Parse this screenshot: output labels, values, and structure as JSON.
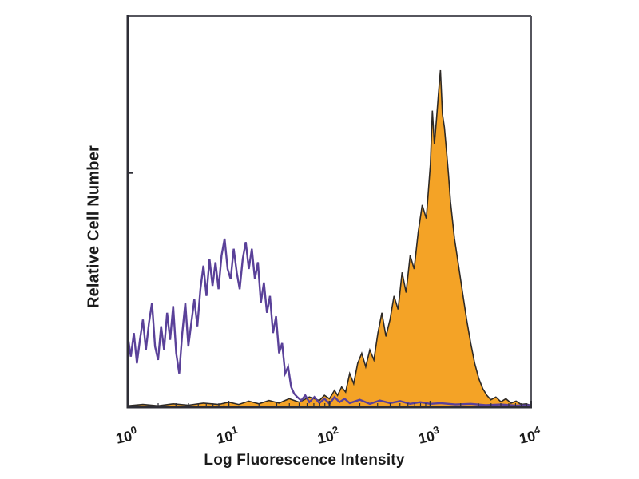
{
  "chart_data": {
    "type": "area",
    "subtype": "flow-cytometry-overlay-histogram",
    "title": "",
    "xlabel": "Log Fluorescence Intensity",
    "ylabel": "Relative Cell Number",
    "x_scale": "log10",
    "x_tick_base": "10",
    "x_tick_exponents": [
      "0",
      "1",
      "2",
      "3",
      "4"
    ],
    "xlim_exponents": [
      0,
      4
    ],
    "y_ticks": [],
    "ylim": [
      0,
      1
    ],
    "grid": false,
    "legend": "none",
    "colors": {
      "open_histogram_stroke": "#5a4199",
      "filled_histogram_fill": "#f4a326",
      "filled_histogram_outline": "#2e2a26",
      "axis_main": "#2e2e36",
      "frame_light": "#56565e",
      "text": "#1b1b1b",
      "background": "#ffffff"
    },
    "series": [
      {
        "name": "filled-histogram-orange",
        "style": "filled",
        "peak_at_log10": 3.1,
        "points": [
          [
            0.0,
            0.004
          ],
          [
            0.15,
            0.008
          ],
          [
            0.3,
            0.004
          ],
          [
            0.45,
            0.01
          ],
          [
            0.6,
            0.006
          ],
          [
            0.75,
            0.012
          ],
          [
            0.9,
            0.008
          ],
          [
            1.0,
            0.015
          ],
          [
            1.1,
            0.008
          ],
          [
            1.2,
            0.018
          ],
          [
            1.3,
            0.01
          ],
          [
            1.4,
            0.02
          ],
          [
            1.5,
            0.012
          ],
          [
            1.6,
            0.025
          ],
          [
            1.7,
            0.015
          ],
          [
            1.8,
            0.03
          ],
          [
            1.9,
            0.02
          ],
          [
            1.95,
            0.035
          ],
          [
            2.0,
            0.025
          ],
          [
            2.05,
            0.05
          ],
          [
            2.08,
            0.035
          ],
          [
            2.12,
            0.06
          ],
          [
            2.16,
            0.045
          ],
          [
            2.2,
            0.1
          ],
          [
            2.24,
            0.07
          ],
          [
            2.28,
            0.13
          ],
          [
            2.32,
            0.16
          ],
          [
            2.36,
            0.12
          ],
          [
            2.4,
            0.17
          ],
          [
            2.44,
            0.14
          ],
          [
            2.48,
            0.22
          ],
          [
            2.52,
            0.28
          ],
          [
            2.56,
            0.21
          ],
          [
            2.6,
            0.26
          ],
          [
            2.64,
            0.33
          ],
          [
            2.68,
            0.29
          ],
          [
            2.72,
            0.4
          ],
          [
            2.76,
            0.34
          ],
          [
            2.8,
            0.45
          ],
          [
            2.84,
            0.41
          ],
          [
            2.88,
            0.52
          ],
          [
            2.92,
            0.6
          ],
          [
            2.96,
            0.56
          ],
          [
            3.0,
            0.72
          ],
          [
            3.02,
            0.88
          ],
          [
            3.04,
            0.78
          ],
          [
            3.06,
            0.85
          ],
          [
            3.08,
            0.93
          ],
          [
            3.1,
            1.0
          ],
          [
            3.12,
            0.87
          ],
          [
            3.14,
            0.83
          ],
          [
            3.16,
            0.76
          ],
          [
            3.18,
            0.69
          ],
          [
            3.2,
            0.61
          ],
          [
            3.24,
            0.5
          ],
          [
            3.28,
            0.42
          ],
          [
            3.32,
            0.34
          ],
          [
            3.36,
            0.26
          ],
          [
            3.4,
            0.19
          ],
          [
            3.44,
            0.13
          ],
          [
            3.48,
            0.085
          ],
          [
            3.52,
            0.055
          ],
          [
            3.56,
            0.035
          ],
          [
            3.6,
            0.022
          ],
          [
            3.65,
            0.03
          ],
          [
            3.7,
            0.016
          ],
          [
            3.75,
            0.025
          ],
          [
            3.8,
            0.012
          ],
          [
            3.85,
            0.018
          ],
          [
            3.9,
            0.008
          ],
          [
            3.95,
            0.01
          ],
          [
            4.0,
            0.005
          ]
        ]
      },
      {
        "name": "open-histogram-purple",
        "style": "line",
        "peak_at_log10": 0.96,
        "points": [
          [
            0.0,
            0.21
          ],
          [
            0.03,
            0.15
          ],
          [
            0.06,
            0.22
          ],
          [
            0.09,
            0.13
          ],
          [
            0.12,
            0.2
          ],
          [
            0.15,
            0.26
          ],
          [
            0.18,
            0.17
          ],
          [
            0.21,
            0.25
          ],
          [
            0.24,
            0.31
          ],
          [
            0.27,
            0.18
          ],
          [
            0.3,
            0.14
          ],
          [
            0.33,
            0.24
          ],
          [
            0.36,
            0.17
          ],
          [
            0.39,
            0.28
          ],
          [
            0.42,
            0.2
          ],
          [
            0.45,
            0.3
          ],
          [
            0.48,
            0.16
          ],
          [
            0.51,
            0.1
          ],
          [
            0.54,
            0.22
          ],
          [
            0.57,
            0.31
          ],
          [
            0.6,
            0.18
          ],
          [
            0.63,
            0.25
          ],
          [
            0.66,
            0.32
          ],
          [
            0.69,
            0.24
          ],
          [
            0.72,
            0.35
          ],
          [
            0.75,
            0.42
          ],
          [
            0.78,
            0.33
          ],
          [
            0.81,
            0.44
          ],
          [
            0.84,
            0.36
          ],
          [
            0.87,
            0.43
          ],
          [
            0.9,
            0.35
          ],
          [
            0.93,
            0.45
          ],
          [
            0.96,
            0.5
          ],
          [
            0.99,
            0.41
          ],
          [
            1.02,
            0.38
          ],
          [
            1.05,
            0.47
          ],
          [
            1.08,
            0.4
          ],
          [
            1.11,
            0.35
          ],
          [
            1.14,
            0.44
          ],
          [
            1.17,
            0.49
          ],
          [
            1.2,
            0.41
          ],
          [
            1.23,
            0.47
          ],
          [
            1.26,
            0.38
          ],
          [
            1.29,
            0.43
          ],
          [
            1.32,
            0.31
          ],
          [
            1.35,
            0.37
          ],
          [
            1.38,
            0.28
          ],
          [
            1.41,
            0.33
          ],
          [
            1.44,
            0.22
          ],
          [
            1.47,
            0.27
          ],
          [
            1.5,
            0.16
          ],
          [
            1.53,
            0.19
          ],
          [
            1.56,
            0.1
          ],
          [
            1.59,
            0.12
          ],
          [
            1.62,
            0.06
          ],
          [
            1.65,
            0.04
          ],
          [
            1.68,
            0.03
          ],
          [
            1.72,
            0.02
          ],
          [
            1.76,
            0.035
          ],
          [
            1.8,
            0.015
          ],
          [
            1.85,
            0.03
          ],
          [
            1.9,
            0.012
          ],
          [
            1.95,
            0.025
          ],
          [
            2.0,
            0.01
          ],
          [
            2.05,
            0.03
          ],
          [
            2.1,
            0.015
          ],
          [
            2.15,
            0.025
          ],
          [
            2.2,
            0.012
          ],
          [
            2.3,
            0.022
          ],
          [
            2.4,
            0.01
          ],
          [
            2.5,
            0.02
          ],
          [
            2.6,
            0.012
          ],
          [
            2.7,
            0.018
          ],
          [
            2.8,
            0.01
          ],
          [
            2.9,
            0.015
          ],
          [
            3.0,
            0.01
          ],
          [
            3.1,
            0.012
          ],
          [
            3.25,
            0.008
          ],
          [
            3.4,
            0.01
          ],
          [
            3.55,
            0.006
          ],
          [
            3.7,
            0.008
          ],
          [
            3.85,
            0.005
          ],
          [
            4.0,
            0.006
          ]
        ]
      }
    ]
  }
}
